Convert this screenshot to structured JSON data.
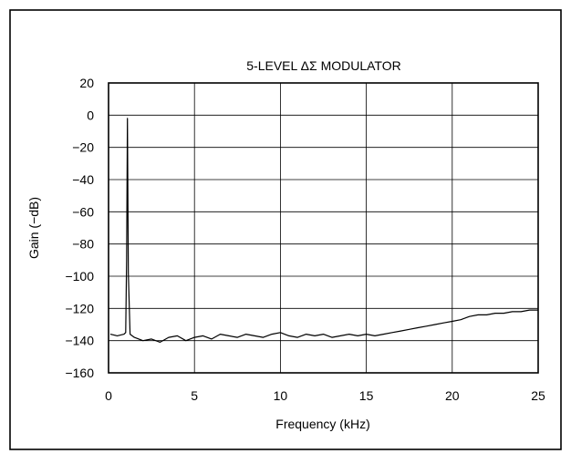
{
  "chart_data": {
    "type": "line",
    "title": "5-LEVEL ΔΣ MODULATOR",
    "xlabel": "Frequency (kHz)",
    "ylabel": "Gain (−dB)",
    "xlim": [
      0,
      25
    ],
    "ylim": [
      -160,
      20
    ],
    "xticks": [
      0,
      5,
      10,
      15,
      20,
      25
    ],
    "xtick_labels": [
      "0",
      "5",
      "10",
      "15",
      "20",
      "25"
    ],
    "yticks": [
      20,
      0,
      -20,
      -40,
      -60,
      -80,
      -100,
      -120,
      -140,
      -160
    ],
    "ytick_labels": [
      "20",
      "0",
      "−20",
      "−40",
      "−60",
      "−80",
      "−100",
      "−120",
      "−140",
      "−160"
    ],
    "grid": true,
    "legend": "none",
    "series": [
      {
        "color": "#000000",
        "x": [
          0.1,
          0.5,
          0.9,
          1.0,
          1.05,
          1.1,
          1.15,
          1.25,
          1.5,
          2.0,
          2.5,
          3.0,
          3.5,
          4.0,
          4.5,
          5.0,
          5.5,
          6.0,
          6.5,
          7.0,
          7.5,
          8.0,
          8.5,
          9.0,
          9.5,
          10.0,
          10.5,
          11.0,
          11.5,
          12.0,
          12.5,
          13.0,
          13.5,
          14.0,
          14.5,
          15.0,
          15.5,
          16.0,
          16.5,
          17.0,
          17.5,
          18.0,
          18.5,
          19.0,
          19.5,
          20.0,
          20.5,
          21.0,
          21.5,
          22.0,
          22.5,
          23.0,
          23.5,
          24.0,
          24.5,
          25.0
        ],
        "y": [
          -136,
          -137,
          -136,
          -135,
          -90,
          -2,
          -98,
          -136,
          -138,
          -140,
          -139,
          -141,
          -138,
          -137,
          -140,
          -138,
          -137,
          -139,
          -136,
          -137,
          -138,
          -136,
          -137,
          -138,
          -136,
          -135,
          -137,
          -138,
          -136,
          -137,
          -136,
          -138,
          -137,
          -136,
          -137,
          -136,
          -137,
          -136,
          -135,
          -134,
          -133,
          -132,
          -131,
          -130,
          -129,
          -128,
          -127,
          -125,
          -124,
          -124,
          -123,
          -123,
          -122,
          -122,
          -121,
          -121
        ]
      }
    ]
  }
}
